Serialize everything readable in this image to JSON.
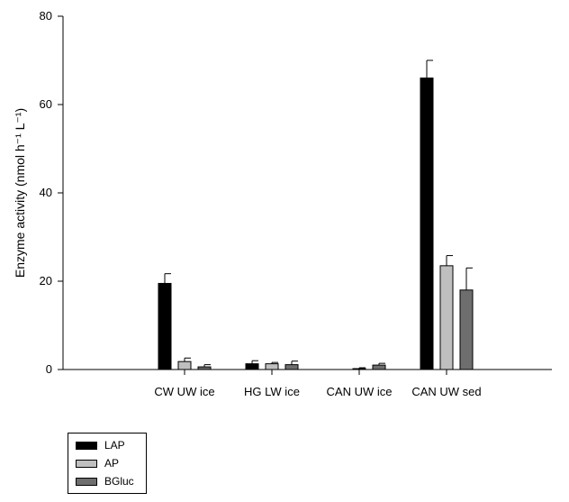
{
  "chart_data": {
    "type": "bar",
    "categories": [
      "CW UW ice",
      "HG LW ice",
      "CAN UW ice",
      "CAN UW sed"
    ],
    "series": [
      {
        "name": "LAP",
        "color": "#000000",
        "values": [
          19.5,
          1.3,
          0.0,
          66.0
        ],
        "errors": [
          2.2,
          0.7,
          0.0,
          4.0
        ]
      },
      {
        "name": "AP",
        "color": "#bfbfbf",
        "values": [
          1.8,
          1.3,
          0.2,
          23.5
        ],
        "errors": [
          0.8,
          0.3,
          0.2,
          2.3
        ]
      },
      {
        "name": "BGluc",
        "color": "#6e6e6e",
        "values": [
          0.6,
          1.1,
          1.0,
          18.0
        ],
        "errors": [
          0.5,
          0.8,
          0.4,
          5.0
        ]
      }
    ],
    "ylim": [
      0,
      80
    ],
    "yticks": [
      0,
      20,
      40,
      60,
      80
    ],
    "xlabel": "",
    "ylabel": "Enzyme activity",
    "ylabel_unit": "(nmol h⁻¹ L⁻¹)",
    "legend_position": "bottom-left, below plot",
    "grid": false
  }
}
